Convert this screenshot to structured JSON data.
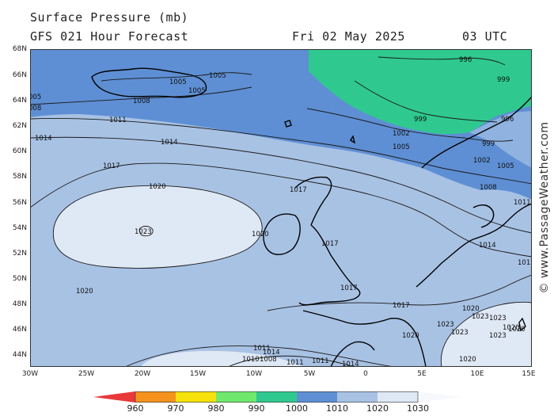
{
  "header": {
    "title": "Surface Pressure (mb)",
    "subtitle": "GFS 021 Hour Forecast",
    "date": "Fri 02 May 2025",
    "time": "03 UTC"
  },
  "watermark": "© www.PassageWeather.com",
  "axes": {
    "lat_labels": [
      "68N",
      "66N",
      "64N",
      "62N",
      "60N",
      "58N",
      "56N",
      "54N",
      "52N",
      "50N",
      "48N",
      "46N",
      "44N"
    ],
    "lon_labels": [
      "30W",
      "25W",
      "20W",
      "15W",
      "10W",
      "5W",
      "0",
      "5E",
      "10E",
      "15E"
    ]
  },
  "legend": {
    "labels": [
      "960",
      "970",
      "980",
      "990",
      "1000",
      "1010",
      "1020",
      "1030"
    ],
    "colors": [
      "#e8383a",
      "#f5921e",
      "#f6e20a",
      "#6fe86d",
      "#2fc98f",
      "#5e8fd4",
      "#a8c2e4",
      "#dfe8f5"
    ]
  },
  "isobar_labels": [
    "1005",
    "1005",
    "1005",
    "1008",
    "008",
    "005",
    "1011",
    "1014",
    "1014",
    "1017",
    "1020",
    "1023",
    "1020",
    "1020",
    "1017",
    "1017",
    "1017",
    "1017",
    "1014",
    "1011",
    "1011",
    "1010",
    "1008",
    "1011",
    "1014",
    "996",
    "999",
    "999",
    "996",
    "1002",
    "1005",
    "999",
    "1002",
    "1005",
    "1008",
    "1011",
    "1014",
    "1011",
    "1020",
    "1023",
    "1023",
    "1023",
    "1020",
    "1023",
    "1023",
    "1020",
    "1020",
    "1020"
  ],
  "colors": {
    "ocean_low": "#2fc98f",
    "band_1000_1010": "#5e8fd4",
    "band_1010_1020": "#a8c2e4",
    "band_1020_1030": "#dfe8f5",
    "land_outline": "#000000"
  }
}
